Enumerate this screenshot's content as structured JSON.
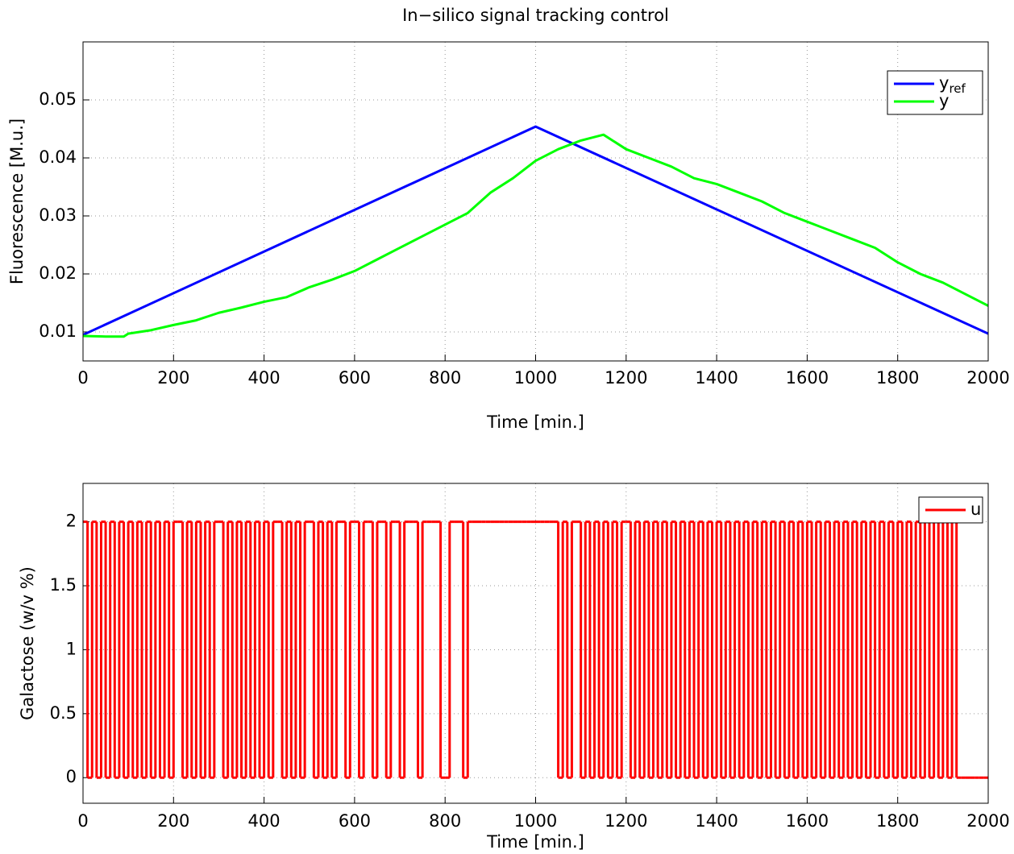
{
  "chart_data": [
    {
      "type": "line",
      "title": "In−silico signal tracking control",
      "xlabel": "Time [min.]",
      "ylabel": "Fluorescence [M.u.]",
      "xlim": [
        0,
        2000
      ],
      "xticks": [
        0,
        200,
        400,
        600,
        800,
        1000,
        1200,
        1400,
        1600,
        1800,
        2000
      ],
      "ylim": [
        0.005,
        0.06
      ],
      "yticks": [
        0.01,
        0.02,
        0.03,
        0.04,
        0.05
      ],
      "grid": true,
      "legend": "upper right",
      "series": [
        {
          "name": "y",
          "subscript": "ref",
          "color": "#0000ff",
          "x": [
            0,
            1000,
            2000
          ],
          "values": [
            0.0095,
            0.0454,
            0.0097
          ]
        },
        {
          "name": "y",
          "color": "#00ff00",
          "x": [
            0,
            50,
            90,
            100,
            150,
            200,
            250,
            300,
            350,
            400,
            450,
            500,
            550,
            600,
            650,
            700,
            750,
            800,
            850,
            900,
            950,
            1000,
            1050,
            1100,
            1150,
            1200,
            1250,
            1300,
            1350,
            1400,
            1450,
            1500,
            1550,
            1600,
            1650,
            1700,
            1750,
            1800,
            1850,
            1900,
            1950,
            2000
          ],
          "values": [
            0.0093,
            0.0092,
            0.0092,
            0.0097,
            0.0103,
            0.0112,
            0.012,
            0.0133,
            0.0142,
            0.0152,
            0.016,
            0.0177,
            0.019,
            0.0205,
            0.0225,
            0.0245,
            0.0265,
            0.0285,
            0.0305,
            0.034,
            0.0365,
            0.0395,
            0.0415,
            0.043,
            0.044,
            0.0415,
            0.04,
            0.0385,
            0.0365,
            0.0355,
            0.034,
            0.0325,
            0.0305,
            0.029,
            0.0275,
            0.026,
            0.0245,
            0.022,
            0.02,
            0.0185,
            0.0165,
            0.0145
          ]
        }
      ]
    },
    {
      "type": "line",
      "xlabel": "Time [min.]",
      "ylabel": "Galactose (w/v %)",
      "xlim": [
        0,
        2000
      ],
      "xticks": [
        0,
        200,
        400,
        600,
        800,
        1000,
        1200,
        1400,
        1600,
        1800,
        2000
      ],
      "ylim": [
        -0.2,
        2.3
      ],
      "yticks": [
        0,
        0.5,
        1,
        1.5,
        2
      ],
      "grid": true,
      "legend": "upper right",
      "series": [
        {
          "name": "u",
          "color": "#ff0000",
          "drawstyle": "steps-post",
          "x": [
            0,
            10,
            20,
            30,
            40,
            50,
            60,
            70,
            80,
            90,
            100,
            110,
            120,
            130,
            140,
            150,
            160,
            170,
            180,
            190,
            200,
            210,
            220,
            230,
            240,
            250,
            260,
            270,
            280,
            290,
            300,
            310,
            320,
            330,
            340,
            350,
            360,
            370,
            380,
            390,
            400,
            410,
            420,
            430,
            440,
            450,
            460,
            470,
            480,
            490,
            500,
            510,
            520,
            530,
            540,
            550,
            560,
            570,
            580,
            590,
            600,
            610,
            620,
            630,
            640,
            650,
            660,
            670,
            680,
            690,
            700,
            710,
            720,
            730,
            740,
            750,
            760,
            770,
            780,
            790,
            800,
            810,
            820,
            830,
            840,
            850,
            860,
            870,
            880,
            890,
            900,
            910,
            920,
            930,
            940,
            950,
            960,
            970,
            980,
            990,
            1000,
            1010,
            1020,
            1030,
            1040,
            1050,
            1060,
            1070,
            1080,
            1090,
            1100,
            1110,
            1120,
            1130,
            1140,
            1150,
            1160,
            1170,
            1180,
            1190,
            1200,
            1210,
            1220,
            1230,
            1240,
            1250,
            1260,
            1270,
            1280,
            1290,
            1300,
            1310,
            1320,
            1330,
            1340,
            1350,
            1360,
            1370,
            1380,
            1390,
            1400,
            1410,
            1420,
            1430,
            1440,
            1450,
            1460,
            1470,
            1480,
            1490,
            1500,
            1510,
            1520,
            1530,
            1540,
            1550,
            1560,
            1570,
            1580,
            1590,
            1600,
            1610,
            1620,
            1630,
            1640,
            1650,
            1660,
            1670,
            1680,
            1690,
            1700,
            1710,
            1720,
            1730,
            1740,
            1750,
            1760,
            1770,
            1780,
            1790,
            1800,
            1810,
            1820,
            1830,
            1840,
            1850,
            1860,
            1870,
            1880,
            1890,
            1900,
            1910,
            1920,
            1930,
            1940,
            1950,
            1960,
            1970,
            1980,
            1990,
            2000
          ],
          "values": [
            2,
            0,
            2,
            0,
            2,
            0,
            2,
            0,
            2,
            0,
            2,
            0,
            2,
            0,
            2,
            0,
            2,
            0,
            2,
            0,
            2,
            2,
            0,
            2,
            0,
            2,
            0,
            2,
            0,
            2,
            2,
            0,
            2,
            0,
            2,
            0,
            2,
            0,
            2,
            0,
            2,
            0,
            2,
            2,
            0,
            2,
            0,
            2,
            0,
            2,
            2,
            0,
            2,
            0,
            2,
            0,
            2,
            2,
            0,
            2,
            2,
            0,
            2,
            2,
            0,
            2,
            2,
            0,
            2,
            2,
            0,
            2,
            2,
            2,
            0,
            2,
            2,
            2,
            2,
            0,
            0,
            2,
            2,
            2,
            0,
            2,
            2,
            2,
            2,
            2,
            2,
            2,
            2,
            2,
            2,
            2,
            2,
            2,
            2,
            2,
            2,
            2,
            2,
            2,
            2,
            0,
            2,
            0,
            2,
            2,
            0,
            2,
            0,
            2,
            0,
            2,
            0,
            2,
            0,
            2,
            2,
            0,
            2,
            0,
            2,
            0,
            2,
            0,
            2,
            0,
            2,
            0,
            2,
            0,
            2,
            0,
            2,
            0,
            2,
            0,
            2,
            0,
            2,
            0,
            2,
            0,
            2,
            0,
            2,
            0,
            2,
            0,
            2,
            0,
            2,
            0,
            2,
            0,
            2,
            0,
            2,
            0,
            2,
            0,
            2,
            0,
            2,
            0,
            2,
            0,
            2,
            0,
            2,
            0,
            2,
            0,
            2,
            0,
            2,
            0,
            2,
            0,
            2,
            0,
            2,
            0,
            2,
            0,
            2,
            0,
            2,
            0,
            2,
            0,
            0,
            0,
            0,
            0,
            0,
            0,
            0
          ]
        }
      ]
    }
  ]
}
